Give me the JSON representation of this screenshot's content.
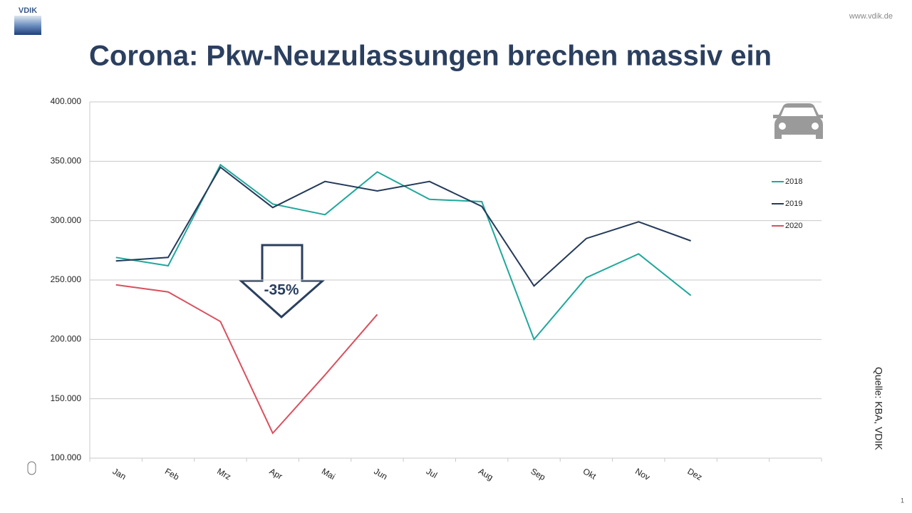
{
  "header": {
    "logo": "VDIK",
    "url": "www.vdik.de",
    "page": "1"
  },
  "source": "Quelle: KBA, VDIK",
  "chart_data": {
    "type": "line",
    "title": "Corona: Pkw-Neuzulassungen brechen massiv ein",
    "annotation": "-35%",
    "categories": [
      "Jan",
      "Feb",
      "Mrz",
      "Apr",
      "Mai",
      "Jun",
      "Jul",
      "Aug",
      "Sep",
      "Okt",
      "Nov",
      "Dez",
      null,
      null
    ],
    "series": [
      {
        "name": "2018",
        "color": "#1fa89a",
        "values": [
          269000,
          262000,
          347000,
          314000,
          305000,
          341000,
          318000,
          316000,
          200000,
          252000,
          272000,
          237000,
          null,
          null
        ]
      },
      {
        "name": "2019",
        "color": "#243a5a",
        "values": [
          266000,
          269000,
          345000,
          311000,
          333000,
          325000,
          333000,
          312000,
          245000,
          285000,
          299000,
          283000,
          null,
          null
        ]
      },
      {
        "name": "2020",
        "color": "#d9505e",
        "values": [
          246000,
          240000,
          215000,
          121000,
          170000,
          221000,
          null,
          null,
          null,
          null,
          null,
          null,
          null,
          null
        ]
      }
    ],
    "ylim": [
      100000,
      400000
    ],
    "yticks": [
      {
        "value": 100000,
        "label": "100.000"
      },
      {
        "value": 150000,
        "label": "150.000"
      },
      {
        "value": 200000,
        "label": "200.000"
      },
      {
        "value": 250000,
        "label": "250.000"
      },
      {
        "value": 300000,
        "label": "300.000"
      },
      {
        "value": 350000,
        "label": "350.000"
      },
      {
        "value": 400000,
        "label": "400.000"
      }
    ],
    "grid": true,
    "legend": "right"
  }
}
